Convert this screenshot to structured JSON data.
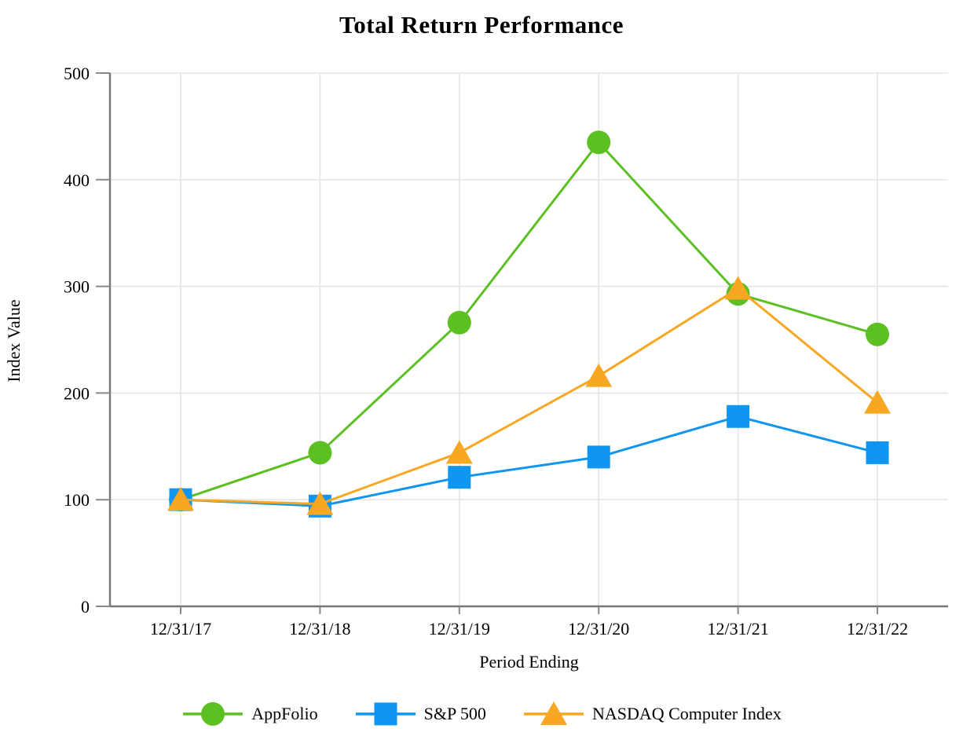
{
  "page_title": "Total Return Performance",
  "chart_data": {
    "type": "line",
    "title": "Total Return Performance",
    "xlabel": "Period Ending",
    "ylabel": "Index Value",
    "categories": [
      "12/31/17",
      "12/31/18",
      "12/31/19",
      "12/31/20",
      "12/31/21",
      "12/31/22"
    ],
    "series": [
      {
        "name": "AppFolio",
        "color": "#5cbf22",
        "marker": "circle",
        "values": [
          100,
          144,
          266,
          435,
          293,
          255
        ]
      },
      {
        "name": "S&P 500",
        "color": "#1096f0",
        "marker": "square",
        "values": [
          100,
          94,
          121,
          140,
          178,
          144
        ]
      },
      {
        "name": "NASDAQ Computer Index",
        "color": "#f8a723",
        "marker": "triangle",
        "values": [
          100,
          96,
          144,
          216,
          298,
          191
        ]
      }
    ],
    "ylim": [
      0,
      500
    ],
    "yticks": [
      0,
      100,
      200,
      300,
      400,
      500
    ],
    "grid": true,
    "legend_position": "bottom"
  },
  "colors": {
    "background": "#ffffff",
    "axis": "#777777",
    "tick": "#888888",
    "grid": "#e5e5e5",
    "text": "#000000"
  }
}
